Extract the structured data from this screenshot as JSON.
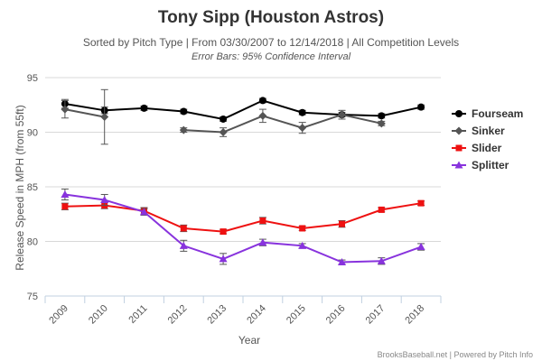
{
  "chart_data": {
    "type": "line",
    "title": "Tony Sipp (Houston Astros)",
    "subtitle": "Sorted by Pitch Type | From 03/30/2007 to 12/14/2018 | All Competition Levels",
    "subtitle2": "Error Bars: 95% Confidence Interval",
    "xlabel": "Year",
    "ylabel": "Release Speed in MPH (from 55ft)",
    "categories": [
      "2009",
      "2010",
      "2011",
      "2012",
      "2013",
      "2014",
      "2015",
      "2016",
      "2017",
      "2018"
    ],
    "ylim": [
      75,
      95
    ],
    "yticks": [
      75,
      80,
      85,
      90,
      95
    ],
    "grid": true,
    "legend_position": "right",
    "credits": "BrooksBaseball.net | Powered by Pitch Info",
    "series": [
      {
        "name": "Fourseam",
        "color": "#000000",
        "marker": "circle",
        "values": [
          92.6,
          92.0,
          92.2,
          91.9,
          91.2,
          92.9,
          91.8,
          91.6,
          91.5,
          92.3
        ],
        "err": [
          [
            92.2,
            93.0
          ],
          [
            91.7,
            92.3
          ],
          [
            92.0,
            92.4
          ],
          [
            91.7,
            92.1
          ],
          [
            91.0,
            91.4
          ],
          [
            92.7,
            93.1
          ],
          [
            91.6,
            92.0
          ],
          [
            91.4,
            91.8
          ],
          [
            91.3,
            91.7
          ],
          [
            92.1,
            92.5
          ]
        ]
      },
      {
        "name": "Sinker",
        "color": "#555555",
        "marker": "diamond",
        "values": [
          92.1,
          91.4,
          null,
          90.2,
          90.0,
          91.5,
          90.4,
          91.6,
          90.8,
          null
        ],
        "err": [
          [
            91.3,
            92.9
          ],
          [
            88.9,
            93.9
          ],
          null,
          [
            90.0,
            90.4
          ],
          [
            89.6,
            90.4
          ],
          [
            90.9,
            92.1
          ],
          [
            89.9,
            90.9
          ],
          [
            91.2,
            92.0
          ],
          [
            90.6,
            91.0
          ],
          null
        ]
      },
      {
        "name": "Slider",
        "color": "#ee1111",
        "marker": "square",
        "values": [
          83.2,
          83.3,
          82.8,
          81.2,
          80.9,
          81.9,
          81.2,
          81.6,
          82.9,
          83.5
        ],
        "err": [
          [
            82.9,
            83.5
          ],
          [
            83.0,
            83.6
          ],
          [
            82.5,
            83.1
          ],
          [
            80.9,
            81.5
          ],
          [
            80.7,
            81.1
          ],
          [
            81.6,
            82.2
          ],
          [
            81.0,
            81.4
          ],
          [
            81.3,
            81.9
          ],
          [
            82.7,
            83.1
          ],
          [
            83.3,
            83.7
          ]
        ]
      },
      {
        "name": "Splitter",
        "color": "#8833dd",
        "marker": "triangle",
        "values": [
          84.3,
          83.8,
          82.7,
          79.6,
          78.4,
          79.9,
          79.6,
          78.1,
          78.2,
          79.5
        ],
        "err": [
          [
            83.8,
            84.8
          ],
          [
            83.3,
            84.3
          ],
          [
            82.4,
            83.0
          ],
          [
            79.1,
            80.1
          ],
          [
            77.9,
            78.9
          ],
          [
            79.6,
            80.2
          ],
          [
            79.4,
            79.8
          ],
          [
            77.9,
            78.3
          ],
          [
            77.9,
            78.5
          ],
          [
            79.2,
            79.8
          ]
        ]
      }
    ]
  }
}
